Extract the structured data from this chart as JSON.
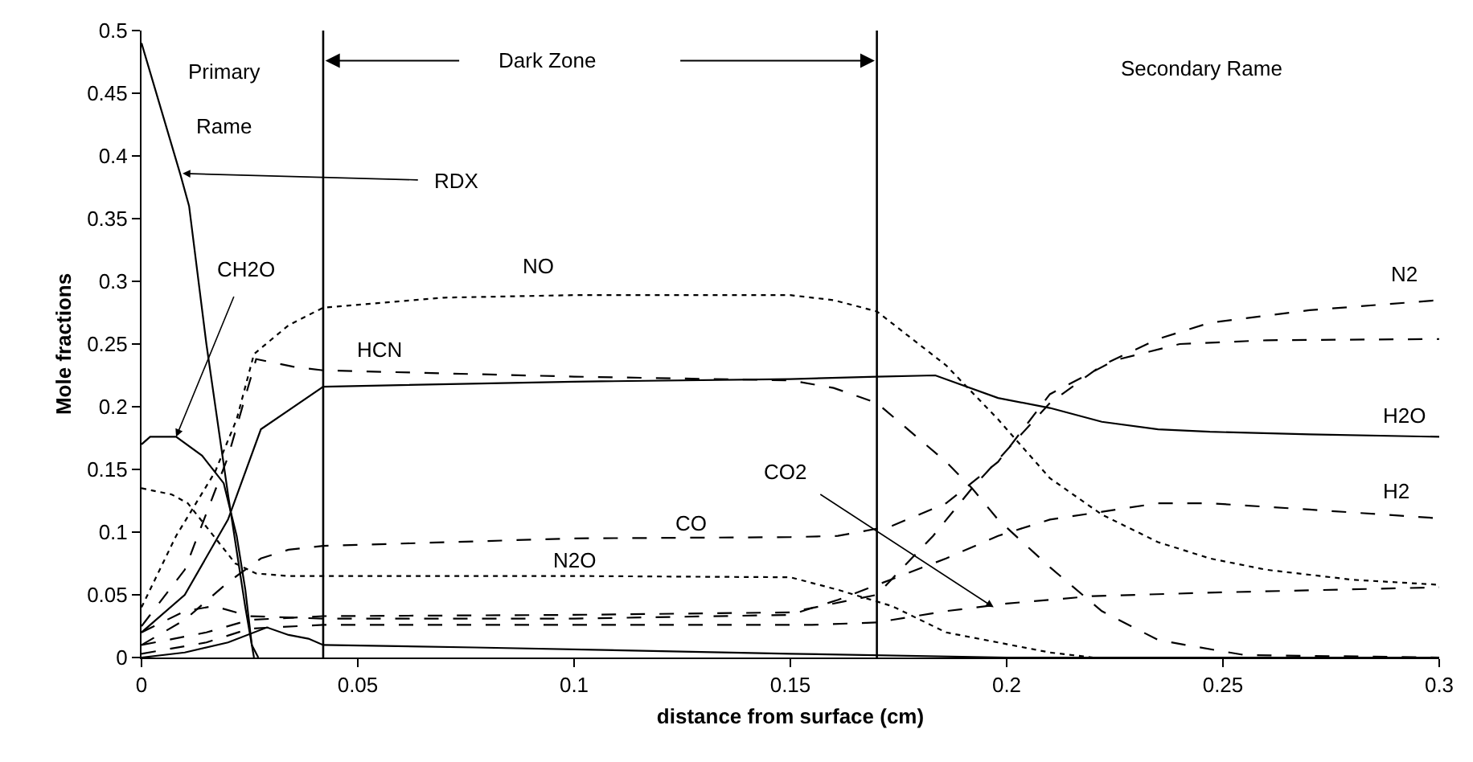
{
  "chart_data": {
    "type": "line",
    "xlabel": "distance from surface (cm)",
    "ylabel": "Mole fractions",
    "xlim": [
      0,
      0.3
    ],
    "xticks": [
      0,
      0.05,
      0.1,
      0.15,
      0.2,
      0.25,
      0.3
    ],
    "ylim": [
      0,
      0.5
    ],
    "yticks": [
      0,
      0.05,
      0.1,
      0.15,
      0.2,
      0.25,
      0.3,
      0.35,
      0.4,
      0.45,
      0.5
    ],
    "grid": false,
    "legend": false,
    "marker": "none",
    "annotations": [
      "Primary Rame",
      "Dark Zone",
      "Secondary Rame"
    ],
    "ref_lines": [
      {
        "axis": "x",
        "value": 0.042,
        "color": "#000000"
      },
      {
        "axis": "x",
        "value": 0.17,
        "color": "#000000"
      }
    ],
    "series": [
      {
        "name": "RDX",
        "color": "#000000",
        "line_style": "solid",
        "x": [
          0,
          0.009,
          0.011,
          0.015,
          0.02,
          0.024,
          0.026
        ],
        "values": [
          0.49,
          0.385,
          0.36,
          0.25,
          0.13,
          0.04,
          0
        ]
      },
      {
        "name": "CH2O",
        "color": "#000000",
        "line_style": "solid",
        "x": [
          0,
          0.002,
          0.008,
          0.014,
          0.019,
          0.022,
          0.024,
          0.0255,
          0.027
        ],
        "values": [
          0.17,
          0.176,
          0.176,
          0.161,
          0.139,
          0.097,
          0.054,
          0.01,
          0
        ]
      },
      {
        "name": "NO",
        "color": "#000000",
        "line_style": "dotted",
        "x": [
          0,
          0.008,
          0.017,
          0.022,
          0.026,
          0.034,
          0.042,
          0.07,
          0.1,
          0.15,
          0.16,
          0.17,
          0.186,
          0.198,
          0.21,
          0.222,
          0.235,
          0.247,
          0.26,
          0.28,
          0.3
        ],
        "values": [
          0.04,
          0.097,
          0.148,
          0.19,
          0.242,
          0.265,
          0.279,
          0.287,
          0.289,
          0.289,
          0.285,
          0.276,
          0.233,
          0.19,
          0.143,
          0.114,
          0.092,
          0.079,
          0.07,
          0.062,
          0.058
        ]
      },
      {
        "name": "HCN",
        "color": "#000000",
        "line_style": "dashed",
        "x": [
          0,
          0.01,
          0.02,
          0.0265,
          0.035,
          0.042,
          0.1,
          0.15,
          0.16,
          0.17,
          0.186,
          0.192,
          0.198,
          0.21,
          0.222,
          0.235,
          0.243,
          0.255,
          0.3
        ],
        "values": [
          0.025,
          0.07,
          0.16,
          0.238,
          0.232,
          0.229,
          0.224,
          0.221,
          0.215,
          0.203,
          0.156,
          0.135,
          0.11,
          0.072,
          0.037,
          0.014,
          0.009,
          0.002,
          0
        ]
      },
      {
        "name": "H2O",
        "color": "#000000",
        "line_style": "solid",
        "x": [
          0,
          0.01,
          0.02,
          0.0276,
          0.042,
          0.1,
          0.15,
          0.17,
          0.1835,
          0.198,
          0.21,
          0.222,
          0.235,
          0.247,
          0.27,
          0.3
        ],
        "values": [
          0.02,
          0.05,
          0.11,
          0.182,
          0.216,
          0.22,
          0.222,
          0.224,
          0.225,
          0.207,
          0.199,
          0.188,
          0.182,
          0.18,
          0.178,
          0.176
        ]
      },
      {
        "name": "N2",
        "color": "#000000",
        "line_style": "dashed",
        "x": [
          0,
          0.015,
          0.025,
          0.042,
          0.1,
          0.15,
          0.17,
          0.183,
          0.192,
          0.21,
          0.222,
          0.235,
          0.247,
          0.27,
          0.3
        ],
        "values": [
          0.01,
          0.02,
          0.03,
          0.033,
          0.034,
          0.036,
          0.05,
          0.097,
          0.135,
          0.203,
          0.233,
          0.254,
          0.267,
          0.277,
          0.285
        ]
      },
      {
        "name": "CO",
        "color": "#000000",
        "line_style": "dashed",
        "x": [
          0,
          0.01,
          0.02,
          0.0276,
          0.034,
          0.042,
          0.1,
          0.15,
          0.161,
          0.1735,
          0.186,
          0.198,
          0.21,
          0.225,
          0.24,
          0.26,
          0.3
        ],
        "values": [
          0.01,
          0.03,
          0.06,
          0.079,
          0.086,
          0.089,
          0.095,
          0.096,
          0.097,
          0.105,
          0.123,
          0.156,
          0.21,
          0.237,
          0.25,
          0.253,
          0.254
        ]
      },
      {
        "name": "H2",
        "color": "#000000",
        "line_style": "dashed",
        "x": [
          0,
          0.01,
          0.0167,
          0.025,
          0.042,
          0.1,
          0.15,
          0.161,
          0.186,
          0.198,
          0.21,
          0.235,
          0.247,
          0.27,
          0.3
        ],
        "values": [
          0.02,
          0.037,
          0.041,
          0.033,
          0.031,
          0.031,
          0.034,
          0.046,
          0.079,
          0.097,
          0.11,
          0.123,
          0.123,
          0.118,
          0.111
        ]
      },
      {
        "name": "N2O",
        "color": "#000000",
        "line_style": "dotted",
        "x": [
          0,
          0.007,
          0.0107,
          0.0217,
          0.0265,
          0.034,
          0.042,
          0.1,
          0.15,
          0.161,
          0.1735,
          0.186,
          0.198,
          0.21,
          0.22,
          0.3
        ],
        "values": [
          0.135,
          0.13,
          0.123,
          0.075,
          0.067,
          0.065,
          0.065,
          0.065,
          0.064,
          0.054,
          0.041,
          0.02,
          0.012,
          0.004,
          0,
          0
        ]
      },
      {
        "name": "CO2",
        "color": "#000000",
        "line_style": "dashed",
        "x": [
          0,
          0.015,
          0.025,
          0.03,
          0.042,
          0.1,
          0.155,
          0.17,
          0.186,
          0.2,
          0.22,
          0.25,
          0.3
        ],
        "values": [
          0.003,
          0.012,
          0.023,
          0.024,
          0.026,
          0.026,
          0.026,
          0.028,
          0.037,
          0.043,
          0.049,
          0.052,
          0.056
        ]
      },
      {
        "color": "#000000",
        "line_style": "solid",
        "x": [
          0,
          0.01,
          0.02,
          0.029,
          0.034,
          0.0386,
          0.042,
          0.077,
          0.15,
          0.2,
          0.3
        ],
        "values": [
          0,
          0.004,
          0.012,
          0.024,
          0.018,
          0.015,
          0.01,
          0.008,
          0.003,
          0,
          0
        ]
      }
    ]
  }
}
